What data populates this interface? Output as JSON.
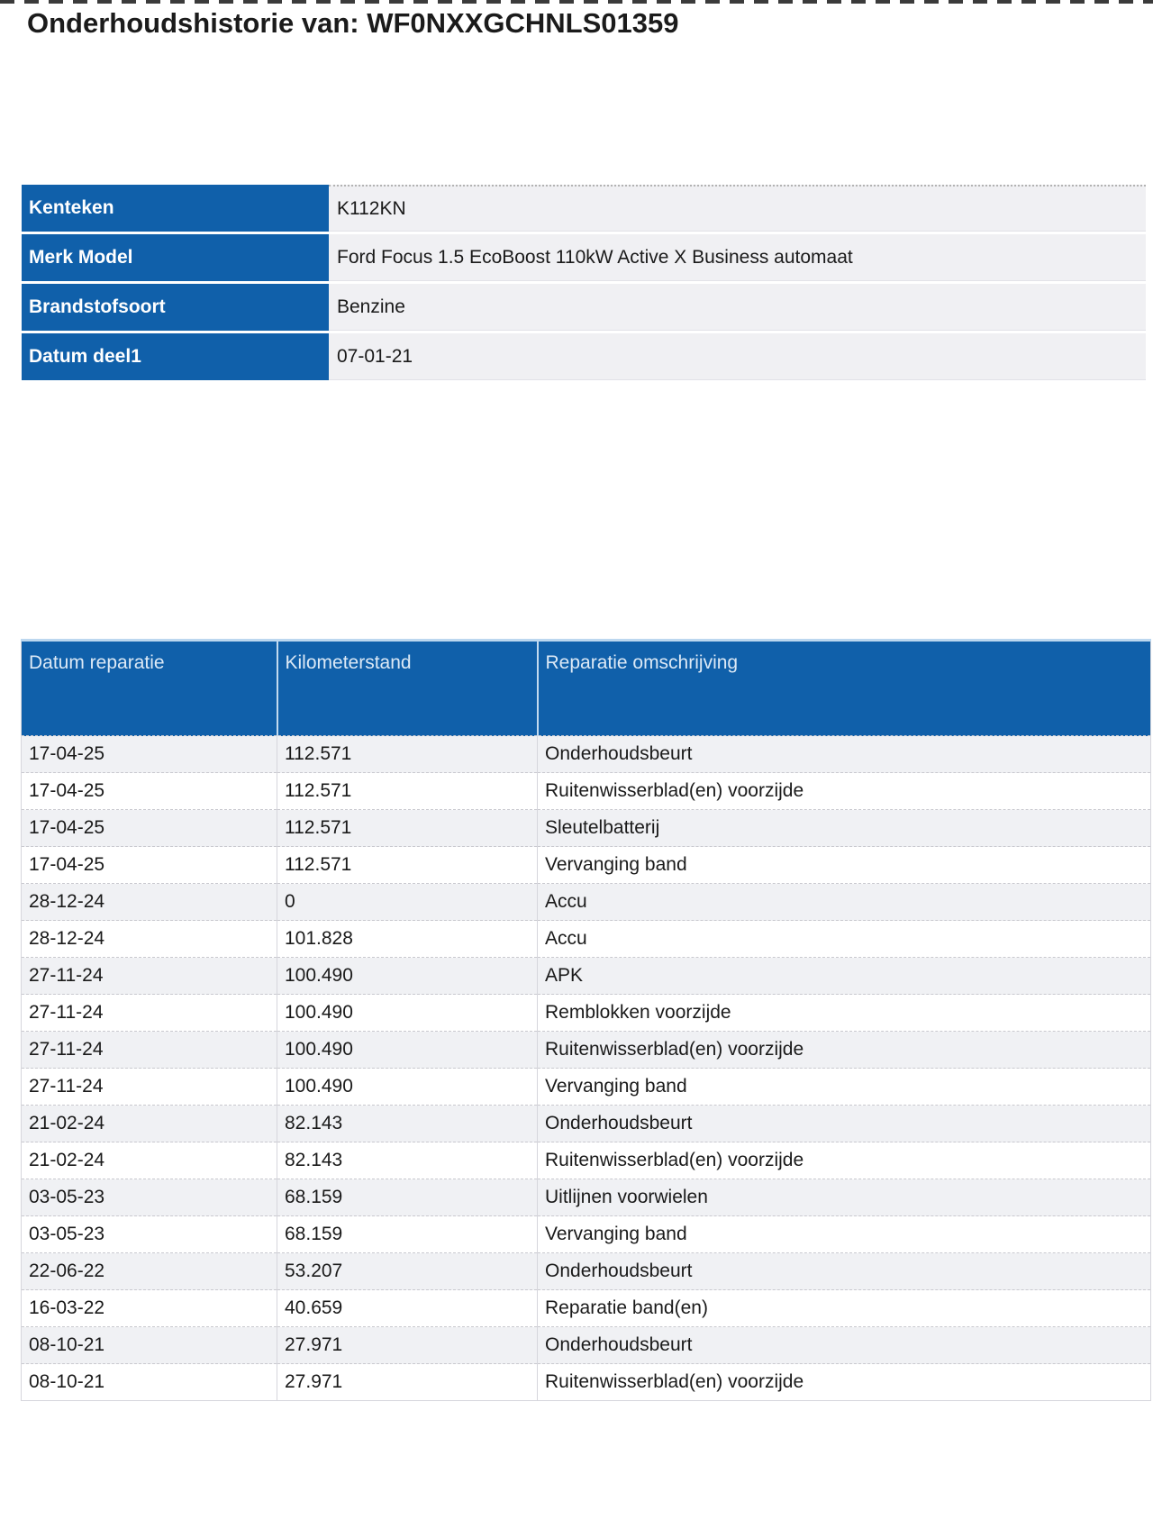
{
  "title": "Onderhoudshistorie van: WF0NXXGCHNLS01359",
  "colors": {
    "header_blue": "#1060aa",
    "row_alt_gray": "#f0f1f4",
    "header_text_light": "#dce9f6",
    "body_text": "#1a1a1a"
  },
  "vehicle_info": {
    "rows": [
      {
        "label": "Kenteken",
        "value": "K112KN"
      },
      {
        "label": "Merk Model",
        "value": "Ford Focus 1.5 EcoBoost 110kW Active X Business automaat"
      },
      {
        "label": "Brandstofsoort",
        "value": "Benzine"
      },
      {
        "label": "Datum deel1",
        "value": "07-01-21"
      }
    ]
  },
  "repairs": {
    "columns": [
      "Datum reparatie",
      "Kilometerstand",
      "Reparatie omschrijving"
    ],
    "rows": [
      [
        "17-04-25",
        "112.571",
        "Onderhoudsbeurt"
      ],
      [
        "17-04-25",
        "112.571",
        "Ruitenwisserblad(en) voorzijde"
      ],
      [
        "17-04-25",
        "112.571",
        "Sleutelbatterij"
      ],
      [
        "17-04-25",
        "112.571",
        "Vervanging band"
      ],
      [
        "28-12-24",
        "0",
        "Accu"
      ],
      [
        "28-12-24",
        "101.828",
        "Accu"
      ],
      [
        "27-11-24",
        "100.490",
        "APK"
      ],
      [
        "27-11-24",
        "100.490",
        "Remblokken voorzijde"
      ],
      [
        "27-11-24",
        "100.490",
        "Ruitenwisserblad(en) voorzijde"
      ],
      [
        "27-11-24",
        "100.490",
        "Vervanging band"
      ],
      [
        "21-02-24",
        "82.143",
        "Onderhoudsbeurt"
      ],
      [
        "21-02-24",
        "82.143",
        "Ruitenwisserblad(en) voorzijde"
      ],
      [
        "03-05-23",
        "68.159",
        "Uitlijnen voorwielen"
      ],
      [
        "03-05-23",
        "68.159",
        "Vervanging band"
      ],
      [
        "22-06-22",
        "53.207",
        "Onderhoudsbeurt"
      ],
      [
        "16-03-22",
        "40.659",
        "Reparatie band(en)"
      ],
      [
        "08-10-21",
        "27.971",
        "Onderhoudsbeurt"
      ],
      [
        "08-10-21",
        "27.971",
        "Ruitenwisserblad(en) voorzijde"
      ]
    ]
  }
}
